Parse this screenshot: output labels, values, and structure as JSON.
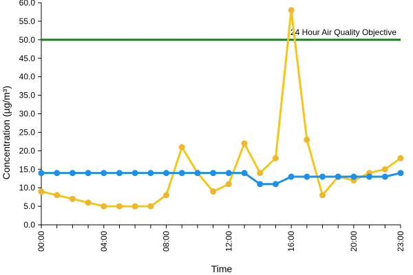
{
  "chart_data": {
    "type": "line",
    "xlabel": "Time",
    "ylabel": "Concentration (µg/m³)",
    "xlim": [
      0,
      23
    ],
    "ylim": [
      0,
      60
    ],
    "y_ticks": [
      "0.0",
      "5.0",
      "10.0",
      "15.0",
      "20.0",
      "25.0",
      "30.0",
      "35.0",
      "40.0",
      "45.0",
      "50.0",
      "55.0",
      "60.0"
    ],
    "x_tick_labels": [
      "00:00",
      "04:00",
      "08:00",
      "12:00",
      "16:00",
      "20:00",
      "23:00"
    ],
    "x_tick_hours": [
      0,
      4,
      8,
      12,
      16,
      20,
      23
    ],
    "x": [
      0,
      1,
      2,
      3,
      4,
      5,
      6,
      7,
      8,
      9,
      10,
      11,
      12,
      13,
      14,
      15,
      16,
      17,
      18,
      19,
      20,
      21,
      22,
      23
    ],
    "series": [
      {
        "color": "#F5C518",
        "marker_fill": "#EDB82E",
        "values": [
          9,
          8,
          7,
          6,
          5,
          5,
          5,
          5,
          8,
          21,
          14,
          9,
          11,
          22,
          14,
          18,
          58,
          23,
          8,
          13,
          12,
          14,
          15,
          18
        ]
      },
      {
        "color": "#1E90E6",
        "marker_fill": "#1E90E6",
        "values": [
          14,
          14,
          14,
          14,
          14,
          14,
          14,
          14,
          14,
          14,
          14,
          14,
          14,
          14,
          11,
          11,
          13,
          13,
          13,
          13,
          13,
          13,
          13,
          14
        ]
      }
    ],
    "reference_line": {
      "label": "24 Hour Air Quality Objective",
      "value": 50,
      "color": "#1E7A1E"
    },
    "grid": false,
    "legend": "none"
  }
}
